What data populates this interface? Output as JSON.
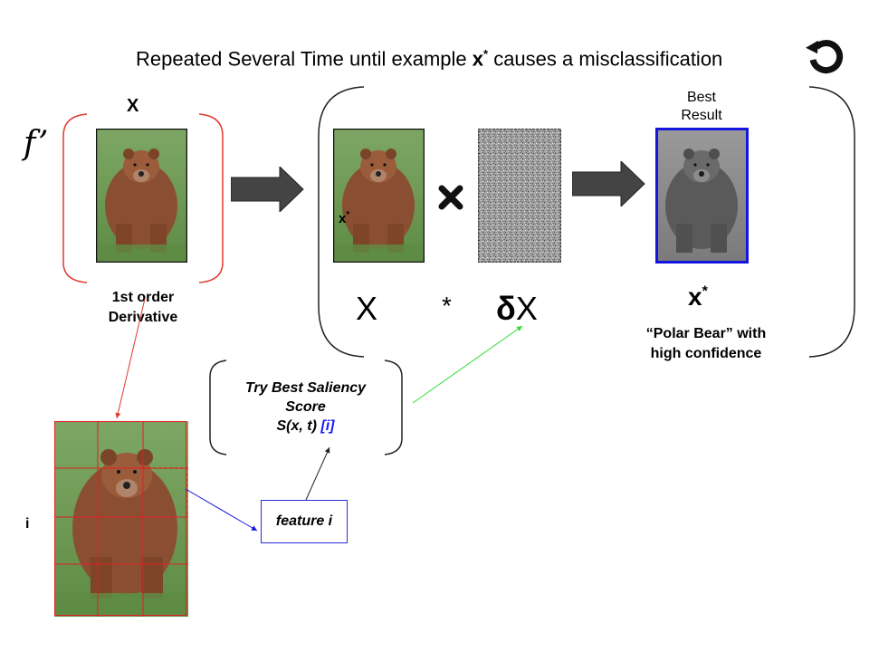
{
  "title": {
    "before": "Repeated Several Time until example ",
    "var": "x",
    "sup": "*",
    "after": " causes a misclassification"
  },
  "icons": [
    "refresh-icon",
    "multiply-icon",
    "arrow-right-icon"
  ],
  "input_label": "X",
  "derivative_symbol": "f’",
  "derivative_label": [
    "1st order",
    "Derivative"
  ],
  "equation": {
    "x": "X",
    "times": "*",
    "delta_symbol": "δ",
    "delta_var": "X"
  },
  "inner_label": {
    "var": "x",
    "sup": "*"
  },
  "best_result": [
    "Best",
    "Result"
  ],
  "output": {
    "var": "x",
    "sup": "*",
    "caption": [
      "“Polar Bear” with",
      "high confidence"
    ]
  },
  "saliency": {
    "line1": "Try Best Saliency",
    "line2": "Score",
    "formula": "S(x, t) ",
    "index": "[i]"
  },
  "feature_label": "feature i",
  "grid_label": "i",
  "colors": {
    "bracket_red": "#e0392f",
    "border_blue": "#1515e0",
    "arrow_green": "#33dd33",
    "arrow_blue": "#1515e0",
    "arrow_dark": "#333333"
  }
}
